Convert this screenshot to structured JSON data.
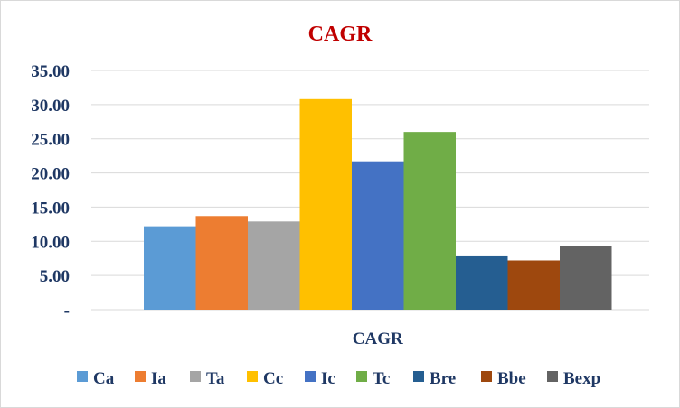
{
  "chart_data": {
    "type": "bar",
    "title": "CAGR",
    "categories": [
      "CAGR"
    ],
    "series": [
      {
        "name": "Ca",
        "values": [
          12.2
        ],
        "color": "#5b9bd5"
      },
      {
        "name": "Ia",
        "values": [
          13.7
        ],
        "color": "#ed7d31"
      },
      {
        "name": "Ta",
        "values": [
          12.9
        ],
        "color": "#a5a5a5"
      },
      {
        "name": "Cc",
        "values": [
          30.8
        ],
        "color": "#ffc000"
      },
      {
        "name": "Ic",
        "values": [
          21.7
        ],
        "color": "#4472c4"
      },
      {
        "name": "Tc",
        "values": [
          26.0
        ],
        "color": "#70ad47"
      },
      {
        "name": "Bre",
        "values": [
          7.8
        ],
        "color": "#255e91"
      },
      {
        "name": "Bbe",
        "values": [
          7.2
        ],
        "color": "#9e480e"
      },
      {
        "name": "Bexp",
        "values": [
          9.3
        ],
        "color": "#636363"
      }
    ],
    "ylim": [
      0,
      35
    ],
    "yticks": [
      0,
      5,
      10,
      15,
      20,
      25,
      30,
      35
    ],
    "ytick_labels": [
      "-",
      "5.00",
      "10.00",
      "15.00",
      "20.00",
      "25.00",
      "30.00",
      "35.00"
    ],
    "grid": true,
    "legend_position": "bottom",
    "title_color": "#c00000",
    "text_color": "#1f3864"
  }
}
